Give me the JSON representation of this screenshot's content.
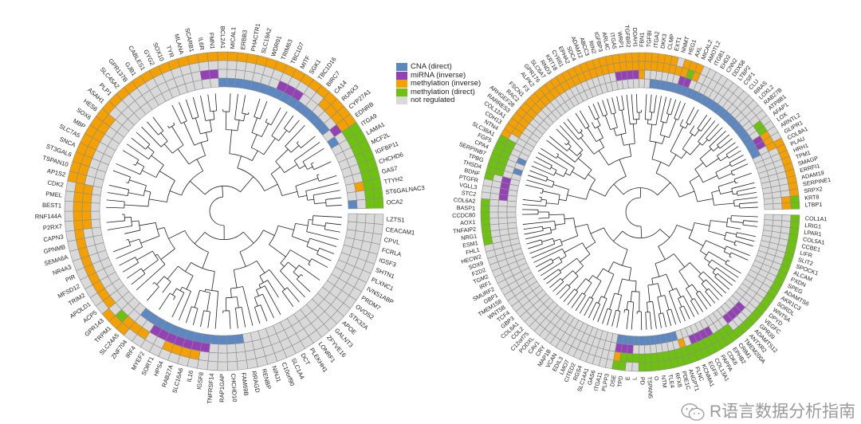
{
  "colors": {
    "B": "#5b88c2",
    "P": "#9440b6",
    "O": "#f3a000",
    "G": "#6cc20c",
    "N": "#d9d9d9",
    "grid": "#8c8c8c",
    "tree": "#222222"
  },
  "legend": [
    {
      "code": "B",
      "label": "CNA (direct)"
    },
    {
      "code": "P",
      "label": "miRNA (inverse)"
    },
    {
      "code": "O",
      "label": "methylation (inverse)"
    },
    {
      "code": "G",
      "label": "methylation (direct)"
    },
    {
      "code": "N",
      "label": "not regulated"
    }
  ],
  "left": {
    "genes": [
      [
        "LZTS1",
        "NNNN"
      ],
      [
        "CEACAM1",
        "NNNN"
      ],
      [
        "CPVL",
        "NNNN"
      ],
      [
        "FCRLA",
        "NNNN"
      ],
      [
        "IGSF3",
        "NNNN"
      ],
      [
        "SHTN1",
        "NNNN"
      ],
      [
        "PLXNC1",
        "NNNN"
      ],
      [
        "IVNS1ABP",
        "NNNN"
      ],
      [
        "PRDM7",
        "NNNN"
      ],
      [
        "OVOS2",
        "NNNN"
      ],
      [
        "STK32A",
        "NNNN"
      ],
      [
        "APOE",
        "NNNN"
      ],
      [
        "GALNT3",
        "NNNN"
      ],
      [
        "ZFYVE16",
        "NNNN"
      ],
      [
        "LONRF1",
        "NNNN"
      ],
      [
        "PLEKHH1",
        "NNNN"
      ],
      [
        "DCT",
        "NNNN"
      ],
      [
        "SLC1A4",
        "NNNN"
      ],
      [
        "C10orf90",
        "NNNN"
      ],
      [
        "NINJ1",
        "NNNN"
      ],
      [
        "RENBP",
        "NNNN"
      ],
      [
        "RRAGD",
        "NNNN"
      ],
      [
        "FAM69B",
        "NNNB"
      ],
      [
        "CHCHD10",
        "NNNB"
      ],
      [
        "RAP1GAP",
        "NNNB"
      ],
      [
        "TNFRSF14",
        "NNNB"
      ],
      [
        "IGSF8",
        "NNPB"
      ],
      [
        "IL16",
        "NOPB"
      ],
      [
        "SLC16A6",
        "NOPB"
      ],
      [
        "RAB27A",
        "NOPB"
      ],
      [
        "HPS4",
        "NOPB"
      ],
      [
        "SORT1",
        "NNPB"
      ],
      [
        "MYEF2",
        "NNPB"
      ],
      [
        "IRF4",
        "NONB"
      ],
      [
        "ZNF704",
        "NONB"
      ],
      [
        "SLC24A5",
        "OONN"
      ],
      [
        "TRPM1",
        "OGNN"
      ],
      [
        "GPR143",
        "ONNN"
      ],
      [
        "ACP5",
        "NONN"
      ],
      [
        "APOLD1",
        "NONN"
      ],
      [
        "TRIM2",
        "NONN"
      ],
      [
        "MFSD12",
        "NONN"
      ],
      [
        "PIR",
        "NONN"
      ],
      [
        "NR4A3",
        "NONN"
      ],
      [
        "SEMA6A",
        "NONN"
      ],
      [
        "GPNMB",
        "NONN"
      ],
      [
        "CAPN3",
        "NONN"
      ],
      [
        "P2RX7",
        "NOON"
      ],
      [
        "RNF144A",
        "NOON"
      ],
      [
        "BEST1",
        "NOON"
      ],
      [
        "PMEL",
        "NOON"
      ],
      [
        "CDK2",
        "NOON"
      ],
      [
        "AP1S2",
        "OONN"
      ],
      [
        "TSPAN10",
        "OONN"
      ],
      [
        "ST3GAL6",
        "OONN"
      ],
      [
        "SNCA",
        "OONN"
      ],
      [
        "SLC7A5",
        "OONN"
      ],
      [
        "MBP",
        "OONN"
      ],
      [
        "SOX6",
        "OONN"
      ],
      [
        "HES6",
        "OONN"
      ],
      [
        "ASAH1",
        "ONNN"
      ],
      [
        "PLP1",
        "ONNN"
      ],
      [
        "SLC45A2",
        "ONNN"
      ],
      [
        "GPR137B",
        "ONNN"
      ],
      [
        "GJB1",
        "ONNN"
      ],
      [
        "CABLES1",
        "ONNN"
      ],
      [
        "GYG2",
        "ONNN"
      ],
      [
        "SOX10",
        "ONNN"
      ],
      [
        "TYR",
        "ONNN"
      ],
      [
        "MLANA",
        "ONNN"
      ],
      [
        "SCARB1",
        "ONNN"
      ],
      [
        "IL6R",
        "ONPN"
      ],
      [
        "FMN1",
        "ONPN"
      ],
      [
        "BCL2A1",
        "ONNB"
      ],
      [
        "MICAL1",
        "ONNB"
      ],
      [
        "ERBB3",
        "ONNB"
      ],
      [
        "PHACTR1",
        "ONNB"
      ],
      [
        "SLC19A2",
        "ONNB"
      ],
      [
        "WDR91",
        "ONNB"
      ],
      [
        "TRIM63",
        "ONNB"
      ],
      [
        "TBC1D7",
        "ONPB"
      ],
      [
        "MITF",
        "ONPB"
      ],
      [
        "SGK1",
        "ONPB"
      ],
      [
        "TBC1D16",
        "ONNB"
      ],
      [
        "BIRC7",
        "ONNB"
      ],
      [
        "CA14",
        "OONB"
      ],
      [
        "RUNX3",
        "OONB"
      ],
      [
        "CYP27A1",
        "OONB"
      ],
      [
        "EDNRB",
        "OOPN"
      ],
      [
        "ITGA9",
        "GGNB"
      ],
      [
        "LAMA1",
        "GGNN"
      ],
      [
        "MCF2L",
        "GGNN"
      ],
      [
        "IGFBP11",
        "GGNN"
      ],
      [
        "CHCHD6",
        "GGNN"
      ],
      [
        "GAS7",
        "GGNN"
      ],
      [
        "TTYH2",
        "GGON"
      ],
      [
        "ST6GALNAC3",
        "GGNN"
      ],
      [
        "OCA2",
        "GGNB"
      ]
    ]
  },
  "right": {
    "genes": [
      [
        "COL1A1",
        "GNNN"
      ],
      [
        "LRIG1",
        "GNNN"
      ],
      [
        "LPAR1",
        "GNNN"
      ],
      [
        "COL5A1",
        "GNNN"
      ],
      [
        "CCBE1",
        "GNNN"
      ],
      [
        "LIFR",
        "GNNN"
      ],
      [
        "SLIT2",
        "GNNN"
      ],
      [
        "SPOCK1",
        "GNNN"
      ],
      [
        "ALCAM",
        "GNNN"
      ],
      [
        "PXDN",
        "GNNN"
      ],
      [
        "SPEG",
        "GNNN"
      ],
      [
        "ADAMTS6",
        "GNNN"
      ],
      [
        "AKR1C3",
        "GNNN"
      ],
      [
        "SORDL",
        "GNNN"
      ],
      [
        "WNT5A",
        "GNNN"
      ],
      [
        "DPYD",
        "GNNN"
      ],
      [
        "VEGFC",
        "GNNN"
      ],
      [
        "GPR39",
        "GNPN"
      ],
      [
        "ADAMTS12",
        "GNPN"
      ],
      [
        "ANTXR2",
        "GNPN"
      ],
      [
        "TMEM200A",
        "GNPN"
      ],
      [
        "CRIM1",
        "GGNN"
      ],
      [
        "EPHB2",
        "GGNN"
      ],
      [
        "CDK6",
        "GGNN"
      ],
      [
        "PAPPA",
        "GGPN"
      ],
      [
        "COL13A1",
        "GGPN"
      ],
      [
        "EGFR",
        "GGPN"
      ],
      [
        "KCNMA1",
        "GGPN"
      ],
      [
        "FLNC",
        "GGNN"
      ],
      [
        "ANGPT1",
        "GGON"
      ],
      [
        "PDE1C",
        "GGNB"
      ],
      [
        "RFX8",
        "GGNB"
      ],
      [
        "TLE4",
        "GGNB"
      ],
      [
        "NTM",
        "GGNB"
      ],
      [
        "O",
        "GGNB"
      ],
      [
        "TSPAN5",
        "GGNB"
      ],
      [
        "PD",
        "GGNB"
      ],
      [
        "L",
        "NGNB"
      ],
      [
        "E",
        "NGPB"
      ],
      [
        "TPD",
        "GGPB"
      ],
      [
        "DSE",
        "GOPB"
      ],
      [
        "PLPP3",
        "NNNN"
      ],
      [
        "ITGA11",
        "NNNN"
      ],
      [
        "GAS6",
        "NNNN"
      ],
      [
        "SLC14A1",
        "NNNN"
      ],
      [
        "RGS4",
        "NNNN"
      ],
      [
        "CITED2",
        "NNNN"
      ],
      [
        "LMO7",
        "NNNN"
      ],
      [
        "EDIL3",
        "NNNN"
      ],
      [
        "VCAN",
        "NNNN"
      ],
      [
        "MAP1B",
        "NNNN"
      ],
      [
        "CRY",
        "NNNN"
      ],
      [
        "CAV1",
        "NNNN"
      ],
      [
        "PODXL",
        "NNNN"
      ],
      [
        "C12orf75",
        "NNNN"
      ],
      [
        "COL2",
        "NNNN"
      ],
      [
        "COL6A1",
        "NNNN"
      ],
      [
        "GBP3",
        "NNNN"
      ],
      [
        "TCF4",
        "NNNN"
      ],
      [
        "WNT5B",
        "NNNN"
      ],
      [
        "TMEM158",
        "NNNN"
      ],
      [
        "GBP1",
        "NNNN"
      ],
      [
        "SMURF2",
        "NNNN"
      ],
      [
        "IRF1",
        "NNNN"
      ],
      [
        "TGM2",
        "NNNN"
      ],
      [
        "FZD2",
        "NNNN"
      ],
      [
        "SOX9",
        "NNNN"
      ],
      [
        "HECW2",
        "NNNN"
      ],
      [
        "FHL1",
        "NNNN"
      ],
      [
        "ESM1",
        "GNNN"
      ],
      [
        "NRG1",
        "GNNN"
      ],
      [
        "TNFAIP2",
        "GNNN"
      ],
      [
        "AOX1",
        "GNNN"
      ],
      [
        "CCDC80",
        "GNNN"
      ],
      [
        "BASP1",
        "GNNN"
      ],
      [
        "COL6A2",
        "GNNN"
      ],
      [
        "STC2",
        "NNPN"
      ],
      [
        "VGLL3",
        "NNPN"
      ],
      [
        "PTGFR",
        "NNPN"
      ],
      [
        "BDNF",
        "GNPN"
      ],
      [
        "THSD4",
        "GGNN"
      ],
      [
        "TPBG",
        "GGNB"
      ],
      [
        "SERPINB7",
        "GGNN"
      ],
      [
        "CPA4",
        "GGNB"
      ],
      [
        "FGF5",
        "GGNN"
      ],
      [
        "SLC38A1",
        "GGNN"
      ],
      [
        "NTN4",
        "ONNN"
      ],
      [
        "CDH13",
        "OONN"
      ],
      [
        "COL12A1",
        "OONN"
      ],
      [
        "RARRES3",
        "OONN"
      ],
      [
        "ARHGEF28",
        "OONN"
      ],
      [
        "RAC2",
        "OONN"
      ],
      [
        "FSCN1",
        "OONN"
      ],
      [
        "F3",
        "OONN"
      ],
      [
        "ALPK2",
        "OONN"
      ],
      [
        "GPR176",
        "OONN"
      ],
      [
        "SLC6A7",
        "OONN"
      ],
      [
        "RND3",
        "OONN"
      ],
      [
        "KRT18",
        "OONN"
      ],
      [
        "CYR61",
        "OONN"
      ],
      [
        "EPHA2",
        "OONN"
      ],
      [
        "SDC4",
        "OONN"
      ],
      [
        "ADAM12",
        "OONN"
      ],
      [
        "ABCC3",
        "OONN"
      ],
      [
        "RIN2",
        "OONN"
      ],
      [
        "IGFBP3",
        "OONN"
      ],
      [
        "ARL4C",
        "OONN"
      ],
      [
        "ITGA5",
        "OOPN"
      ],
      [
        "WRP1",
        "OOPN"
      ],
      [
        "TGFBR2",
        "OOPN"
      ],
      [
        "DDAH1",
        "OOPN"
      ],
      [
        "FBN1",
        "OOON"
      ],
      [
        "TGFBI",
        "OONN"
      ],
      [
        "ITGA2",
        "OONB"
      ],
      [
        "DKK3",
        "OONB"
      ],
      [
        "CLMP",
        "OONB"
      ],
      [
        "EXT1",
        "OONB"
      ],
      [
        "NNMT",
        "NONB"
      ],
      [
        "HEG1",
        "OOPB"
      ],
      [
        "AXL",
        "OGPB"
      ],
      [
        "MICAL2",
        "OONB"
      ],
      [
        "AMOTL2",
        "NNNB"
      ],
      [
        "ITGB1",
        "NNNB"
      ],
      [
        "EHD2",
        "NNNB"
      ],
      [
        "CNN2",
        "NNNB"
      ],
      [
        "DDX58",
        "NNNB"
      ],
      [
        "LTBP2",
        "NNNB"
      ],
      [
        "CSF1",
        "NNNB"
      ],
      [
        "CLU",
        "NNNB"
      ],
      [
        "RRAS",
        "NNNB"
      ],
      [
        "LOXL2",
        "NNNB"
      ],
      [
        "RAB27B",
        "NNNB"
      ],
      [
        "ATP8B1",
        "NNNB"
      ],
      [
        "AFAP1",
        "NGNB"
      ],
      [
        "LOX",
        "NGNB"
      ],
      [
        "ARNTL2",
        "NOPB"
      ],
      [
        "GLIPR1",
        "NOPB"
      ],
      [
        "COL8A1",
        "OONB"
      ],
      [
        "PLAU",
        "ONNN"
      ],
      [
        "HRH1",
        "ONNN"
      ],
      [
        "TPM1",
        "ONNN"
      ],
      [
        "SMAGP",
        "ONNN"
      ],
      [
        "ERRFI1",
        "ONNN"
      ],
      [
        "ADAM19",
        "ONNN"
      ],
      [
        "SERPINE1",
        "ONNN"
      ],
      [
        "SRPX2",
        "ONNN"
      ],
      [
        "KRT8",
        "GONN"
      ],
      [
        "LTBP1",
        "GONN"
      ]
    ]
  },
  "watermark": {
    "text": "R语言数据分析指南"
  }
}
